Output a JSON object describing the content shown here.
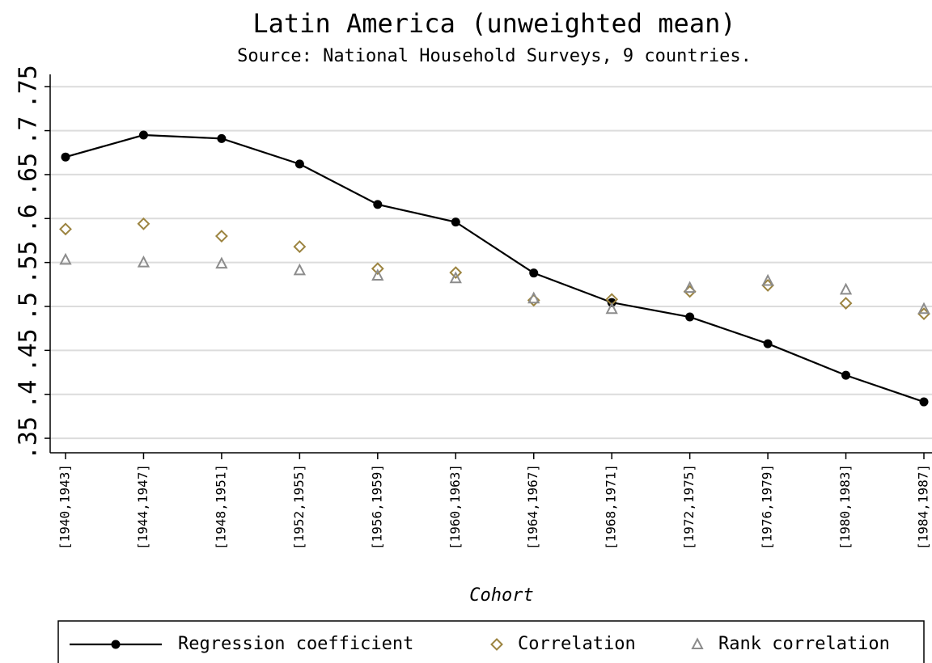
{
  "chart_data": {
    "type": "line",
    "title": "Latin America (unweighted mean)",
    "subtitle": "Source: National Household Surveys, 9 countries.",
    "x_label": "Cohort",
    "categories": [
      "[1940,1943]",
      "[1944,1947]",
      "[1948,1951]",
      "[1952,1955]",
      "[1956,1959]",
      "[1960,1963]",
      "[1964,1967]",
      "[1968,1971]",
      "[1972,1975]",
      "[1976,1979]",
      "[1980,1983]",
      "[1984,1987]"
    ],
    "series": [
      {
        "name": "Regression coefficient",
        "color": "#000000",
        "marker": "circle",
        "connected": true,
        "values": [
          0.67,
          0.695,
          0.691,
          0.662,
          0.616,
          0.596,
          0.538,
          0.5045,
          0.488,
          0.4576,
          0.4217,
          0.3914
        ]
      },
      {
        "name": "Correlation",
        "color": "#9c8440",
        "marker": "diamond",
        "connected": false,
        "values": [
          0.588,
          0.594,
          0.58,
          0.568,
          0.543,
          0.5385,
          0.507,
          0.508,
          0.517,
          0.524,
          0.5036,
          0.4916
        ]
      },
      {
        "name": "Rank correlation",
        "color": "#8c8c8c",
        "marker": "triangle",
        "connected": false,
        "values": [
          0.553,
          0.55,
          0.5486,
          0.541,
          0.535,
          0.532,
          0.509,
          0.497,
          0.521,
          0.529,
          0.519,
          0.497
        ]
      }
    ],
    "ylim": [
      0.3335,
      0.764
    ],
    "yticks": [
      {
        "value": 0.35,
        "label": ".35"
      },
      {
        "value": 0.4,
        "label": ".4"
      },
      {
        "value": 0.45,
        "label": ".45"
      },
      {
        "value": 0.5,
        "label": ".5"
      },
      {
        "value": 0.55,
        "label": ".55"
      },
      {
        "value": 0.6,
        "label": ".6"
      },
      {
        "value": 0.65,
        "label": ".65"
      },
      {
        "value": 0.7,
        "label": ".7"
      },
      {
        "value": 0.75,
        "label": ".75"
      }
    ],
    "grid": true,
    "legend_position": "bottom"
  }
}
